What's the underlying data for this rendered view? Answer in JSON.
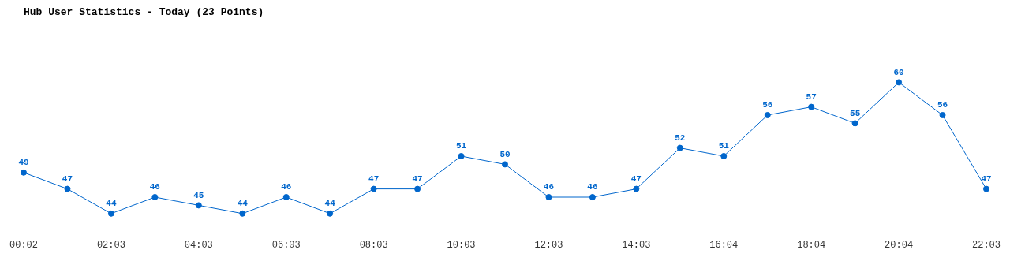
{
  "chart_data": {
    "type": "line",
    "title": "Hub User Statistics - Today (23 Points)",
    "categories": [
      "00:02",
      null,
      "02:03",
      null,
      "04:03",
      null,
      "06:03",
      null,
      "08:03",
      null,
      "10:03",
      null,
      "12:03",
      null,
      "14:03",
      null,
      "16:04",
      null,
      "18:04",
      null,
      "20:04",
      null,
      "22:03"
    ],
    "series": [
      {
        "color": "#0066cc",
        "values": [
          49,
          47,
          44,
          46,
          45,
          44,
          46,
          44,
          47,
          47,
          51,
          50,
          46,
          46,
          47,
          52,
          51,
          56,
          57,
          55,
          60,
          56,
          47
        ]
      }
    ],
    "data_labels": true,
    "marker": "circle",
    "grid": false,
    "legend": false
  }
}
